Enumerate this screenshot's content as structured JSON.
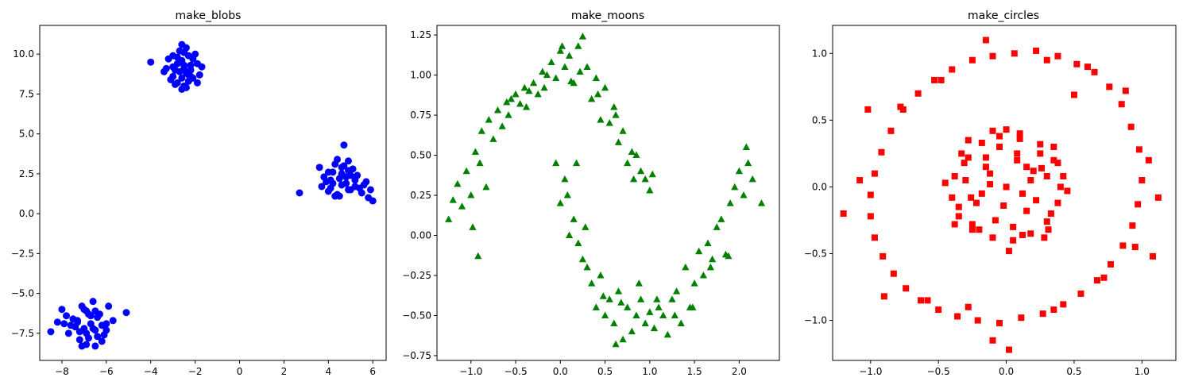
{
  "chart_data": [
    {
      "type": "scatter",
      "title": "make_blobs",
      "xlabel": "",
      "ylabel": "",
      "xlim": [
        -9.0,
        6.6
      ],
      "ylim": [
        -9.2,
        11.8
      ],
      "xticks": [
        -8,
        -6,
        -4,
        -2,
        0,
        2,
        4,
        6
      ],
      "xtick_labels": [
        "−8",
        "−6",
        "−4",
        "−2",
        "0",
        "2",
        "4",
        "6"
      ],
      "yticks": [
        -7.5,
        -5.0,
        -2.5,
        0.0,
        2.5,
        5.0,
        7.5,
        10.0
      ],
      "ytick_labels": [
        "−7.5",
        "−5.0",
        "−2.5",
        "0.0",
        "2.5",
        "5.0",
        "7.5",
        "10.0"
      ],
      "marker": "circle",
      "color": "#0000ff",
      "series": [
        {
          "x": [
            -2.5,
            -2.4,
            -2.7,
            -2.2,
            -3.0,
            -2.6,
            -2.8,
            -2.3,
            -1.9,
            -3.4,
            -2.5,
            -2.1,
            -3.2,
            -2.7,
            -2.3,
            -2.9,
            -1.8,
            -3.0,
            -2.4,
            -2.6,
            -2.0,
            -3.1,
            -2.8,
            -2.2,
            -2.6,
            -2.4,
            -3.3,
            -1.9,
            -2.7,
            -2.5,
            -2.1,
            -2.9,
            -4.0,
            -2.6,
            -2.3,
            -2.8,
            -2.5,
            -2.2,
            -3.0,
            -1.7
          ],
          "y": [
            9.1,
            8.8,
            9.5,
            9.3,
            8.6,
            10.6,
            8.2,
            9.9,
            9.4,
            8.9,
            8.0,
            8.5,
            9.7,
            10.2,
            8.3,
            9.0,
            8.7,
            9.2,
            7.9,
            9.6,
            10.0,
            8.4,
            9.8,
            9.0,
            8.5,
            10.4,
            9.1,
            8.2,
            8.9,
            9.3,
            9.7,
            8.1,
            9.5,
            7.8,
            8.7,
            9.4,
            10.1,
            8.6,
            9.9,
            9.2
          ]
        },
        {
          "x": [
            4.5,
            4.8,
            4.2,
            5.0,
            4.6,
            3.9,
            5.3,
            4.4,
            4.9,
            5.6,
            3.8,
            4.1,
            4.7,
            5.2,
            4.3,
            5.8,
            4.0,
            4.6,
            5.5,
            4.9,
            3.7,
            6.0,
            4.5,
            5.1,
            2.7,
            4.8,
            4.2,
            5.4,
            4.0,
            4.4,
            4.9,
            5.9,
            4.6,
            3.6,
            5.0,
            4.3,
            5.7,
            4.7,
            4.1,
            5.2
          ],
          "y": [
            2.2,
            1.9,
            2.6,
            1.5,
            2.9,
            2.0,
            2.4,
            1.2,
            2.7,
            1.8,
            2.3,
            1.6,
            4.3,
            2.1,
            3.1,
            1.0,
            1.4,
            2.5,
            1.3,
            3.3,
            1.7,
            0.8,
            1.1,
            2.8,
            1.3,
            2.3,
            1.9,
            1.6,
            2.6,
            3.4,
            1.5,
            1.5,
            1.8,
            2.9,
            2.4,
            1.1,
            2.0,
            3.0,
            2.1,
            1.7
          ]
        },
        {
          "x": [
            -6.7,
            -7.0,
            -6.4,
            -7.3,
            -6.9,
            -6.5,
            -7.8,
            -6.2,
            -7.1,
            -6.8,
            -7.5,
            -6.0,
            -6.6,
            -7.2,
            -8.5,
            -6.3,
            -7.9,
            -6.9,
            -5.7,
            -7.4,
            -6.5,
            -7.0,
            -6.1,
            -5.1,
            -7.6,
            -6.7,
            -6.4,
            -7.2,
            -6.8,
            -8.0,
            -6.2,
            -7.3,
            -6.6,
            -7.7,
            -6.0,
            -6.9,
            -6.5,
            -7.1,
            -8.2,
            -5.9
          ],
          "y": [
            -6.9,
            -7.2,
            -6.5,
            -6.8,
            -7.5,
            -6.1,
            -6.4,
            -7.0,
            -5.8,
            -7.8,
            -6.6,
            -7.3,
            -5.5,
            -7.9,
            -7.4,
            -6.3,
            -6.9,
            -8.2,
            -6.7,
            -7.1,
            -8.3,
            -6.0,
            -7.6,
            -6.2,
            -7.0,
            -6.4,
            -7.7,
            -7.4,
            -6.3,
            -6.0,
            -8.0,
            -6.7,
            -7.2,
            -7.5,
            -6.9,
            -6.1,
            -7.3,
            -8.3,
            -6.8,
            -5.8
          ]
        }
      ]
    },
    {
      "type": "scatter",
      "title": "make_moons",
      "xlabel": "",
      "ylabel": "",
      "xlim": [
        -1.38,
        2.45
      ],
      "ylim": [
        -0.78,
        1.31
      ],
      "xticks": [
        -1.0,
        -0.5,
        0.0,
        0.5,
        1.0,
        1.5,
        2.0
      ],
      "xtick_labels": [
        "−1.0",
        "−0.5",
        "0.0",
        "0.5",
        "1.0",
        "1.5",
        "2.0"
      ],
      "yticks": [
        -0.75,
        -0.5,
        -0.25,
        0.0,
        0.25,
        0.5,
        0.75,
        1.0,
        1.25
      ],
      "ytick_labels": [
        "−0.75",
        "−0.50",
        "−0.25",
        "0.00",
        "0.25",
        "0.50",
        "0.75",
        "1.00",
        "1.25"
      ],
      "marker": "triangle",
      "color": "#008000",
      "series": [
        {
          "x": [
            -1.25,
            -1.15,
            -1.05,
            -0.95,
            -0.88,
            -0.8,
            -0.7,
            -0.6,
            -0.5,
            -0.4,
            -0.3,
            -0.2,
            -0.1,
            0.0,
            0.1,
            0.2,
            0.3,
            0.4,
            0.5,
            0.6,
            0.7,
            0.8,
            0.9,
            0.95,
            1.0,
            -1.1,
            -1.0,
            -0.9,
            -0.75,
            -0.65,
            -0.55,
            -0.45,
            -0.35,
            -0.25,
            -0.15,
            -0.05,
            0.05,
            0.15,
            0.25,
            0.35,
            0.45,
            0.55,
            0.65,
            0.75,
            0.85,
            -1.2,
            -0.98,
            -0.83,
            -0.58,
            -0.38,
            -0.18,
            0.02,
            0.22,
            0.42,
            0.62,
            0.82,
            1.03,
            -0.92,
            0.12
          ],
          "y": [
            0.1,
            0.32,
            0.4,
            0.52,
            0.65,
            0.72,
            0.78,
            0.83,
            0.88,
            0.92,
            0.95,
            1.02,
            1.08,
            1.15,
            1.12,
            1.18,
            1.05,
            0.98,
            0.92,
            0.8,
            0.65,
            0.52,
            0.4,
            0.35,
            0.28,
            0.18,
            0.25,
            0.45,
            0.6,
            0.68,
            0.85,
            0.82,
            0.9,
            0.88,
            1.0,
            0.98,
            1.05,
            0.95,
            1.24,
            0.85,
            0.72,
            0.7,
            0.58,
            0.45,
            0.5,
            0.22,
            0.05,
            0.3,
            0.75,
            0.8,
            0.92,
            1.18,
            1.02,
            0.88,
            0.75,
            0.35,
            0.38,
            -0.13,
            0.96
          ]
        },
        {
          "x": [
            -0.05,
            0.0,
            0.05,
            0.1,
            0.15,
            0.2,
            0.25,
            0.3,
            0.35,
            0.4,
            0.45,
            0.5,
            0.55,
            0.6,
            0.65,
            0.7,
            0.75,
            0.8,
            0.85,
            0.9,
            0.95,
            1.0,
            1.05,
            1.1,
            1.15,
            1.2,
            1.25,
            1.3,
            1.35,
            1.4,
            1.45,
            1.5,
            1.55,
            1.6,
            1.65,
            1.7,
            1.75,
            1.8,
            1.85,
            1.9,
            1.95,
            2.0,
            2.05,
            2.1,
            2.15,
            2.25,
            0.08,
            0.18,
            0.28,
            0.48,
            0.68,
            0.88,
            1.08,
            1.28,
            1.48,
            1.68,
            1.88,
            2.08,
            0.62
          ],
          "y": [
            0.45,
            0.2,
            0.35,
            0.0,
            0.1,
            -0.05,
            -0.15,
            -0.2,
            -0.3,
            -0.45,
            -0.25,
            -0.5,
            -0.4,
            -0.55,
            -0.35,
            -0.65,
            -0.45,
            -0.6,
            -0.5,
            -0.4,
            -0.55,
            -0.48,
            -0.58,
            -0.45,
            -0.5,
            -0.62,
            -0.4,
            -0.35,
            -0.55,
            -0.2,
            -0.45,
            -0.3,
            -0.1,
            -0.25,
            -0.05,
            -0.15,
            0.05,
            0.1,
            -0.12,
            0.2,
            0.3,
            0.4,
            0.25,
            0.45,
            0.35,
            0.2,
            0.25,
            0.45,
            0.05,
            -0.38,
            -0.42,
            -0.3,
            -0.4,
            -0.5,
            -0.45,
            -0.2,
            -0.13,
            0.55,
            -0.68
          ]
        }
      ]
    },
    {
      "type": "scatter",
      "title": "make_circles",
      "xlabel": "",
      "ylabel": "",
      "xlim": [
        -1.28,
        1.25
      ],
      "ylim": [
        -1.3,
        1.21
      ],
      "xticks": [
        -1.0,
        -0.5,
        0.0,
        0.5,
        1.0
      ],
      "xtick_labels": [
        "−1.0",
        "−0.5",
        "0.0",
        "0.5",
        "1.0"
      ],
      "yticks": [
        -1.0,
        -0.5,
        0.0,
        0.5,
        1.0
      ],
      "ytick_labels": [
        "−1.0",
        "−0.5",
        "0.0",
        "0.5",
        "1.0"
      ],
      "marker": "square",
      "color": "#ff0000",
      "series": [
        {
          "x": [
            1.0,
            0.98,
            0.92,
            0.85,
            0.76,
            0.65,
            0.52,
            0.38,
            0.22,
            0.06,
            -0.1,
            -0.25,
            -0.4,
            -0.53,
            -0.65,
            -0.76,
            -0.85,
            -0.92,
            -0.97,
            -1.0,
            -1.0,
            -0.97,
            -0.91,
            -0.83,
            -0.74,
            -0.63,
            -0.5,
            -0.36,
            -0.21,
            -0.05,
            0.11,
            0.27,
            0.42,
            0.55,
            0.67,
            0.77,
            0.86,
            0.93,
            0.97,
            1.05,
            1.12,
            0.88,
            0.6,
            0.3,
            -0.15,
            -0.48,
            -0.78,
            -1.08,
            -1.2,
            -0.9,
            -0.58,
            -0.28,
            0.02,
            0.35,
            0.72,
            0.95,
            -1.02,
            1.08,
            -0.1,
            0.5
          ],
          "y": [
            0.05,
            0.28,
            0.45,
            0.62,
            0.75,
            0.86,
            0.92,
            0.98,
            1.02,
            1.0,
            0.98,
            0.95,
            0.88,
            0.8,
            0.7,
            0.58,
            0.42,
            0.26,
            0.1,
            -0.06,
            -0.22,
            -0.38,
            -0.52,
            -0.65,
            -0.76,
            -0.85,
            -0.92,
            -0.97,
            -1.0,
            -1.02,
            -0.98,
            -0.95,
            -0.88,
            -0.8,
            -0.7,
            -0.58,
            -0.44,
            -0.29,
            -0.13,
            0.2,
            -0.08,
            0.72,
            0.9,
            0.95,
            1.1,
            0.8,
            0.6,
            0.05,
            -0.2,
            -0.82,
            -0.85,
            -0.9,
            -1.22,
            -0.92,
            -0.68,
            -0.45,
            0.58,
            -0.52,
            -1.15,
            0.69
          ]
        },
        {
          "x": [
            0.4,
            0.35,
            0.25,
            0.1,
            -0.05,
            -0.18,
            -0.28,
            -0.38,
            -0.4,
            -0.35,
            -0.25,
            -0.1,
            0.05,
            0.18,
            0.3,
            0.38,
            0.15,
            -0.15,
            0.22,
            -0.22,
            0.08,
            -0.08,
            0.3,
            -0.3,
            0.0,
            0.12,
            -0.12,
            0.25,
            -0.25,
            0.33,
            -0.33,
            0.05,
            -0.05,
            0.18,
            -0.18,
            0.28,
            -0.28,
            0.1,
            -0.1,
            0.45,
            -0.45,
            0.02,
            0.2,
            -0.2,
            0.35,
            -0.35,
            0.15,
            -0.15,
            0.08,
            -0.02,
            0.26,
            -0.26,
            0.38,
            -0.38,
            0.12,
            -0.12,
            0.31,
            -0.31,
            0.0,
            0.42
          ],
          "y": [
            0.0,
            0.2,
            0.32,
            0.4,
            0.38,
            0.33,
            0.22,
            0.08,
            -0.08,
            -0.22,
            -0.32,
            -0.38,
            -0.4,
            -0.35,
            -0.26,
            -0.12,
            0.15,
            0.15,
            -0.1,
            -0.12,
            0.25,
            -0.25,
            0.08,
            0.05,
            0.0,
            -0.05,
            0.1,
            0.25,
            -0.28,
            -0.2,
            0.25,
            -0.3,
            0.3,
            0.05,
            -0.05,
            -0.38,
            0.35,
            0.36,
            0.42,
            -0.03,
            0.03,
            -0.48,
            0.12,
            -0.32,
            0.3,
            -0.15,
            -0.18,
            0.22,
            0.2,
            -0.14,
            0.14,
            -0.08,
            0.18,
            -0.28,
            -0.36,
            0.02,
            -0.32,
            0.18,
            0.43,
            0.08
          ]
        }
      ]
    }
  ]
}
